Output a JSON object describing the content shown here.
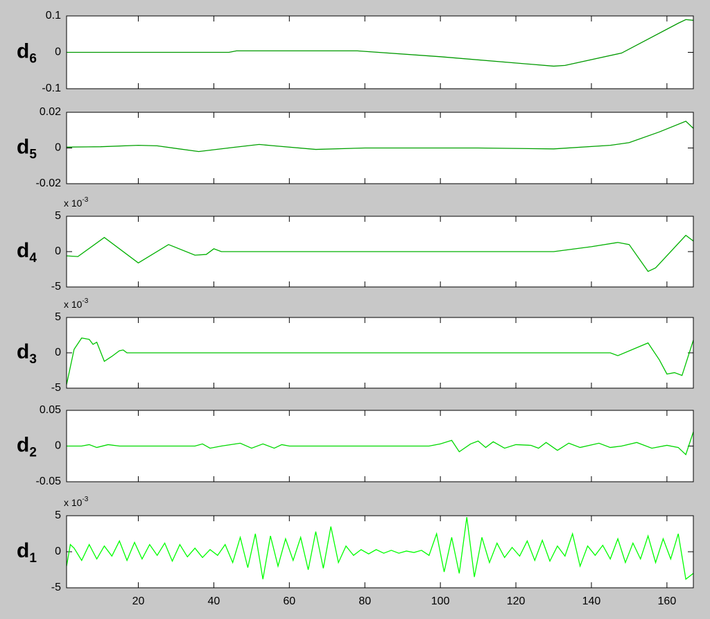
{
  "chart_data": [
    {
      "type": "line",
      "ylabel": "d",
      "ylabel_subscript": "6",
      "xlim": [
        1,
        167
      ],
      "ylim": [
        -0.1,
        0.1
      ],
      "yticks": [
        -0.1,
        0,
        0.1
      ],
      "xticks": [
        20,
        40,
        60,
        80,
        100,
        120,
        140,
        160
      ],
      "xticklabels": false,
      "series": [
        {
          "color": "#009900",
          "x": [
            1,
            44,
            46,
            78,
            100,
            130,
            133,
            148,
            163,
            165,
            167
          ],
          "values": [
            0,
            0,
            0.004,
            0.004,
            -0.012,
            -0.038,
            -0.036,
            -0.002,
            0.08,
            0.09,
            0.088
          ]
        }
      ]
    },
    {
      "type": "line",
      "ylabel": "d",
      "ylabel_subscript": "5",
      "xlim": [
        1,
        167
      ],
      "ylim": [
        -0.02,
        0.02
      ],
      "yticks": [
        -0.02,
        0,
        0.02
      ],
      "xticks": [
        20,
        40,
        60,
        80,
        100,
        120,
        140,
        160
      ],
      "xticklabels": false,
      "series": [
        {
          "color": "#00a000",
          "x": [
            1,
            10,
            20,
            25,
            36,
            45,
            52,
            56,
            67,
            80,
            110,
            130,
            145,
            150,
            158,
            165,
            167
          ],
          "values": [
            0.0005,
            0.0007,
            0.0015,
            0.0012,
            -0.002,
            0.0003,
            0.002,
            0.0012,
            -0.0008,
            0,
            0,
            -0.0005,
            0.0015,
            0.003,
            0.009,
            0.015,
            0.011
          ]
        }
      ]
    },
    {
      "type": "line",
      "ylabel": "d",
      "ylabel_subscript": "4",
      "exponent_label": "x 10",
      "exponent": "-3",
      "xlim": [
        1,
        167
      ],
      "ylim": [
        -5,
        5
      ],
      "yticks": [
        -5,
        0,
        5
      ],
      "xticks": [
        20,
        40,
        60,
        80,
        100,
        120,
        140,
        160
      ],
      "xticklabels": false,
      "series": [
        {
          "color": "#00b000",
          "x": [
            1,
            4,
            11,
            20,
            28,
            35,
            38,
            40,
            42,
            130,
            140,
            147,
            150,
            155,
            157,
            165,
            167
          ],
          "values": [
            -0.6,
            -0.7,
            2.0,
            -1.6,
            1.0,
            -0.5,
            -0.4,
            0.4,
            0,
            0,
            0.7,
            1.3,
            1.0,
            -2.8,
            -2.3,
            2.3,
            1.5
          ]
        }
      ]
    },
    {
      "type": "line",
      "ylabel": "d",
      "ylabel_subscript": "3",
      "exponent_label": "x 10",
      "exponent": "-3",
      "xlim": [
        1,
        167
      ],
      "ylim": [
        -5,
        5
      ],
      "yticks": [
        -5,
        0,
        5
      ],
      "xticks": [
        20,
        40,
        60,
        80,
        100,
        120,
        140,
        160
      ],
      "xticklabels": false,
      "series": [
        {
          "color": "#00c400",
          "x": [
            1,
            3,
            5,
            7,
            8,
            9,
            11,
            13,
            15,
            16,
            17,
            145,
            147,
            155,
            158,
            160,
            162,
            164,
            167
          ],
          "values": [
            -4.5,
            0.5,
            2.1,
            1.9,
            1.2,
            1.5,
            -1.2,
            -0.5,
            0.3,
            0.4,
            0,
            0,
            -0.4,
            1.4,
            -1,
            -3,
            -2.8,
            -3.2,
            1.8
          ]
        }
      ]
    },
    {
      "type": "line",
      "ylabel": "d",
      "ylabel_subscript": "2",
      "xlim": [
        1,
        167
      ],
      "ylim": [
        -0.05,
        0.05
      ],
      "yticks": [
        -0.05,
        0,
        0.05
      ],
      "xticks": [
        20,
        40,
        60,
        80,
        100,
        120,
        140,
        160
      ],
      "xticklabels": false,
      "series": [
        {
          "color": "#00d800",
          "x": [
            1,
            5,
            7,
            9,
            12,
            15,
            35,
            37,
            39,
            42,
            47,
            50,
            53,
            56,
            58,
            60,
            97,
            100,
            103,
            105,
            108,
            110,
            112,
            114,
            117,
            120,
            124,
            126,
            128,
            131,
            134,
            137,
            142,
            145,
            148,
            152,
            156,
            160,
            163,
            165,
            167
          ],
          "values": [
            0,
            0,
            0.002,
            -0.002,
            0.002,
            0,
            0,
            0.003,
            -0.003,
            0,
            0.004,
            -0.003,
            0.003,
            -0.003,
            0.002,
            0,
            0,
            0.003,
            0.008,
            -0.008,
            0.003,
            0.007,
            -0.002,
            0.006,
            -0.003,
            0.002,
            0.001,
            -0.003,
            0.005,
            -0.006,
            0.004,
            -0.002,
            0.004,
            -0.002,
            0,
            0.005,
            -0.003,
            0.001,
            -0.002,
            -0.012,
            0.02
          ]
        }
      ]
    },
    {
      "type": "line",
      "ylabel": "d",
      "ylabel_subscript": "1",
      "exponent_label": "x 10",
      "exponent": "-3",
      "xlim": [
        1,
        167
      ],
      "ylim": [
        -5,
        5
      ],
      "yticks": [
        -5,
        0,
        5
      ],
      "xticks": [
        20,
        40,
        60,
        80,
        100,
        120,
        140,
        160
      ],
      "xticklabels": true,
      "series": [
        {
          "color": "#00ff00",
          "x": [
            1,
            2,
            3,
            5,
            7,
            9,
            11,
            13,
            15,
            17,
            19,
            21,
            23,
            25,
            27,
            29,
            31,
            33,
            35,
            37,
            39,
            41,
            43,
            45,
            47,
            49,
            51,
            53,
            55,
            57,
            59,
            61,
            63,
            65,
            67,
            69,
            71,
            73,
            75,
            77,
            79,
            81,
            83,
            85,
            87,
            89,
            91,
            93,
            95,
            97,
            99,
            101,
            103,
            105,
            107,
            109,
            111,
            113,
            115,
            117,
            119,
            121,
            123,
            125,
            127,
            129,
            131,
            133,
            135,
            137,
            139,
            141,
            143,
            145,
            147,
            149,
            151,
            153,
            155,
            157,
            159,
            161,
            163,
            165,
            167
          ],
          "values": [
            -2,
            1,
            0.5,
            -1.2,
            1,
            -1,
            0.8,
            -0.6,
            1.5,
            -1.2,
            1.3,
            -1,
            1,
            -0.5,
            1.2,
            -1.3,
            1,
            -0.7,
            0.5,
            -0.8,
            0.3,
            -0.5,
            1,
            -1.5,
            2,
            -2.2,
            2.5,
            -3.8,
            2.2,
            -2,
            1.8,
            -1.2,
            2,
            -2.5,
            2.8,
            -2.3,
            3.5,
            -1.5,
            0.8,
            -0.5,
            0.3,
            -0.3,
            0.3,
            -0.2,
            0.2,
            -0.2,
            0.1,
            -0.1,
            0.2,
            -0.5,
            2.5,
            -2.8,
            2,
            -3,
            4.8,
            -3.5,
            2,
            -1.5,
            1.2,
            -0.8,
            0.6,
            -0.6,
            1.5,
            -1.2,
            1.6,
            -1.3,
            0.8,
            -0.6,
            2.5,
            -2,
            0.8,
            -0.5,
            0.9,
            -1,
            1.8,
            -1.5,
            1.2,
            -1,
            2.2,
            -1.5,
            1.8,
            -1,
            2.5,
            -3.8,
            -3
          ]
        }
      ]
    }
  ]
}
